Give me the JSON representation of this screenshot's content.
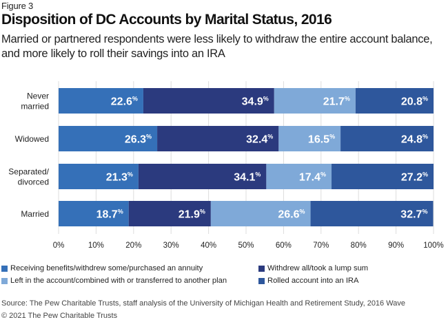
{
  "header": {
    "figure_label": "Figure 3",
    "title": "Disposition of DC Accounts by Marital Status, 2016",
    "subtitle": "Married or partnered respondents were less likely to withdraw the entire account balance, and more likely to roll their savings into an IRA"
  },
  "chart_data": {
    "type": "bar",
    "orientation": "horizontal",
    "stacked": true,
    "title": "Disposition of DC Accounts by Marital Status, 2016",
    "categories": [
      "Never married",
      "Widowed",
      "Separated/ divorced",
      "Married"
    ],
    "category_lines": [
      [
        "Never",
        "married"
      ],
      [
        "Widowed"
      ],
      [
        "Separated/",
        "divorced"
      ],
      [
        "Married"
      ]
    ],
    "series": [
      {
        "name": "Receiving benefits/withdrew some/purchased an annuity",
        "color": "#3570b8",
        "values": [
          22.6,
          26.3,
          21.3,
          18.7
        ]
      },
      {
        "name": "Withdrew all/took a lump sum",
        "color": "#2b3a7e",
        "values": [
          34.9,
          32.4,
          34.1,
          21.9
        ]
      },
      {
        "name": "Left in the account/combined with or transferred to another plan",
        "color": "#7fa9d8",
        "values": [
          21.7,
          16.5,
          17.4,
          26.6
        ]
      },
      {
        "name": "Rolled account into an IRA",
        "color": "#2e579c",
        "values": [
          20.8,
          24.8,
          27.2,
          32.7
        ]
      }
    ],
    "value_suffix": "%",
    "xlim": [
      0,
      100
    ],
    "xticks": [
      0,
      10,
      20,
      30,
      40,
      50,
      60,
      70,
      80,
      90,
      100
    ],
    "xtick_labels": [
      "0%",
      "10%",
      "20%",
      "30%",
      "40%",
      "50%",
      "60%",
      "70%",
      "80%",
      "90%",
      "100%"
    ],
    "xlabel": "",
    "ylabel": "",
    "grid": true,
    "legend_position": "bottom"
  },
  "footer": {
    "source": "Source: The Pew Charitable Trusts, staff analysis of the University of Michigan Health and Retirement Study, 2016 Wave",
    "copyright": "© 2021 The Pew Charitable Trusts"
  }
}
